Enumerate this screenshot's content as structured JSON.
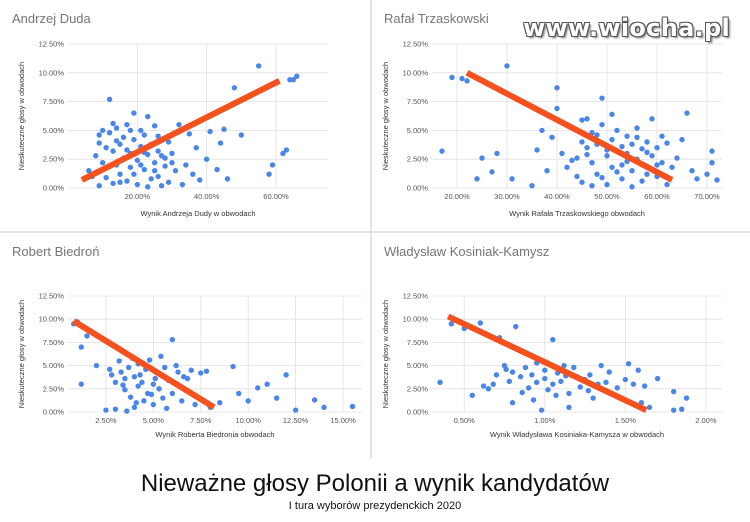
{
  "watermark": "www.wiocha.pl",
  "main_title": "Nieważne głosy Polonii a wynik kandydatów",
  "sub_title": "I tura wyborów prezydenckich 2020",
  "colors": {
    "point": "#4a86e8",
    "trend": "#f4511e",
    "grid": "#e0e0e0"
  },
  "chart_data": [
    {
      "type": "scatter",
      "title": "Andrzej Duda",
      "xlabel": "Wynik Andrzeja Dudy w obwodach",
      "ylabel": "Nieskuteczne głosy w obwodach",
      "xlim": [
        0,
        75
      ],
      "ylim": [
        0,
        12.5
      ],
      "xticks": [
        20,
        40,
        60
      ],
      "xtick_labels": [
        "20.00%",
        "40.00%",
        "60.00%"
      ],
      "yticks": [
        0,
        2.5,
        5,
        7.5,
        10,
        12.5
      ],
      "ytick_labels": [
        "0.00%",
        "2.50%",
        "5.00%",
        "7.50%",
        "10.00%",
        "12.50%"
      ],
      "grid": true,
      "trendline": [
        [
          4,
          0.7
        ],
        [
          61,
          9.3
        ]
      ],
      "points": [
        [
          5,
          0.8
        ],
        [
          6,
          1.5
        ],
        [
          8,
          2.8
        ],
        [
          9,
          0.2
        ],
        [
          9,
          4.6
        ],
        [
          10,
          2.2
        ],
        [
          10,
          5.0
        ],
        [
          11,
          0.9
        ],
        [
          12,
          4.8
        ],
        [
          12,
          7.7
        ],
        [
          13,
          3.2
        ],
        [
          13,
          0.4
        ],
        [
          14,
          2.0
        ],
        [
          14,
          5.2
        ],
        [
          15,
          3.8
        ],
        [
          15,
          1.2
        ],
        [
          16,
          4.4
        ],
        [
          16,
          2.6
        ],
        [
          17,
          0.6
        ],
        [
          17,
          5.5
        ],
        [
          18,
          3.0
        ],
        [
          18,
          1.8
        ],
        [
          19,
          4.2
        ],
        [
          19,
          6.5
        ],
        [
          20,
          2.4
        ],
        [
          20,
          0.3
        ],
        [
          21,
          3.6
        ],
        [
          21,
          5.0
        ],
        [
          22,
          1.6
        ],
        [
          22,
          4.6
        ],
        [
          23,
          2.9
        ],
        [
          23,
          6.2
        ],
        [
          24,
          0.8
        ],
        [
          24,
          3.8
        ],
        [
          25,
          2.2
        ],
        [
          25,
          5.4
        ],
        [
          26,
          1.0
        ],
        [
          26,
          3.2
        ],
        [
          27,
          4.2
        ],
        [
          27,
          0.2
        ],
        [
          28,
          1.9
        ],
        [
          28,
          2.6
        ],
        [
          29,
          0.5
        ],
        [
          29,
          4.0
        ],
        [
          30,
          3.0
        ],
        [
          31,
          1.5
        ],
        [
          32,
          5.5
        ],
        [
          33,
          0.3
        ],
        [
          34,
          2.0
        ],
        [
          35,
          4.7
        ],
        [
          36,
          1.2
        ],
        [
          37,
          3.5
        ],
        [
          38,
          0.7
        ],
        [
          40,
          2.5
        ],
        [
          41,
          4.9
        ],
        [
          43,
          1.6
        ],
        [
          44,
          3.9
        ],
        [
          45,
          5.1
        ],
        [
          46,
          0.8
        ],
        [
          48,
          8.7
        ],
        [
          50,
          4.6
        ],
        [
          55,
          10.6
        ],
        [
          58,
          1.2
        ],
        [
          59,
          2.0
        ],
        [
          62,
          3.0
        ],
        [
          63,
          3.3
        ],
        [
          64,
          9.4
        ],
        [
          65,
          9.4
        ],
        [
          66,
          9.7
        ],
        [
          7,
          1.0
        ],
        [
          11,
          3.5
        ],
        [
          15,
          0.5
        ],
        [
          19,
          1.2
        ],
        [
          23,
          0.1
        ],
        [
          27,
          2.8
        ],
        [
          13,
          5.6
        ],
        [
          17,
          3.3
        ],
        [
          21,
          2.0
        ],
        [
          25,
          1.5
        ],
        [
          9,
          3.9
        ],
        [
          14,
          4.1
        ],
        [
          18,
          5.0
        ],
        [
          22,
          3.1
        ],
        [
          26,
          4.5
        ],
        [
          30,
          2.2
        ]
      ]
    },
    {
      "type": "scatter",
      "title": "Rafał Trzaskowski",
      "xlabel": "Wynik Rafała Trzaskowskiego obwodach",
      "ylabel": "Nieskuteczne głosy w obwodach",
      "xlim": [
        15,
        73
      ],
      "ylim": [
        0,
        12.5
      ],
      "xticks": [
        20,
        30,
        40,
        50,
        60,
        70
      ],
      "xtick_labels": [
        "20.00%",
        "30.00%",
        "40.00%",
        "50.00%",
        "60.00%",
        "70.00%"
      ],
      "yticks": [
        0,
        2.5,
        5,
        7.5,
        10,
        12.5
      ],
      "ytick_labels": [
        "0.00%",
        "2.50%",
        "5.00%",
        "7.50%",
        "10.00%",
        "12.50%"
      ],
      "grid": true,
      "trendline": [
        [
          22,
          10.0
        ],
        [
          63,
          0.7
        ]
      ],
      "points": [
        [
          17,
          3.2
        ],
        [
          19,
          9.6
        ],
        [
          21,
          9.5
        ],
        [
          22,
          9.3
        ],
        [
          24,
          0.8
        ],
        [
          25,
          2.6
        ],
        [
          27,
          1.4
        ],
        [
          28,
          3.0
        ],
        [
          30,
          10.6
        ],
        [
          31,
          0.8
        ],
        [
          35,
          0.2
        ],
        [
          36,
          3.3
        ],
        [
          37,
          5.0
        ],
        [
          38,
          1.5
        ],
        [
          39,
          4.4
        ],
        [
          40,
          6.9
        ],
        [
          40,
          8.7
        ],
        [
          41,
          3.0
        ],
        [
          42,
          1.8
        ],
        [
          43,
          5.2
        ],
        [
          44,
          2.6
        ],
        [
          45,
          4.0
        ],
        [
          45,
          0.5
        ],
        [
          46,
          3.5
        ],
        [
          46,
          6.0
        ],
        [
          47,
          2.2
        ],
        [
          47,
          4.8
        ],
        [
          48,
          1.2
        ],
        [
          48,
          3.8
        ],
        [
          49,
          5.5
        ],
        [
          49,
          7.8
        ],
        [
          50,
          2.8
        ],
        [
          50,
          0.3
        ],
        [
          51,
          4.2
        ],
        [
          51,
          1.8
        ],
        [
          52,
          3.2
        ],
        [
          52,
          5.0
        ],
        [
          53,
          2.0
        ],
        [
          53,
          0.8
        ],
        [
          54,
          4.5
        ],
        [
          54,
          3.0
        ],
        [
          55,
          1.5
        ],
        [
          55,
          3.8
        ],
        [
          56,
          2.5
        ],
        [
          56,
          5.2
        ],
        [
          57,
          0.6
        ],
        [
          57,
          3.4
        ],
        [
          58,
          4.0
        ],
        [
          58,
          1.2
        ],
        [
          59,
          2.8
        ],
        [
          59,
          6.0
        ],
        [
          60,
          3.5
        ],
        [
          60,
          1.0
        ],
        [
          61,
          4.5
        ],
        [
          61,
          2.2
        ],
        [
          62,
          0.3
        ],
        [
          62,
          3.9
        ],
        [
          63,
          1.8
        ],
        [
          64,
          2.6
        ],
        [
          65,
          4.2
        ],
        [
          66,
          6.5
        ],
        [
          67,
          1.5
        ],
        [
          68,
          0.8
        ],
        [
          70,
          1.2
        ],
        [
          71,
          3.2
        ],
        [
          72,
          0.7
        ],
        [
          71,
          2.2
        ],
        [
          44,
          1.0
        ],
        [
          46,
          2.9
        ],
        [
          48,
          4.6
        ],
        [
          50,
          3.3
        ],
        [
          52,
          1.4
        ],
        [
          54,
          2.3
        ],
        [
          56,
          4.4
        ],
        [
          58,
          3.1
        ],
        [
          60,
          2.0
        ],
        [
          45,
          5.9
        ],
        [
          49,
          0.9
        ],
        [
          53,
          3.6
        ],
        [
          47,
          0.2
        ],
        [
          51,
          6.4
        ],
        [
          55,
          0.1
        ],
        [
          43,
          2.4
        ]
      ]
    },
    {
      "type": "scatter",
      "title": "Robert Biedroń",
      "xlabel": "Wynik Roberta Biedronia obwodach",
      "ylabel": "Nieskuteczne głosy w obwodach",
      "xlim": [
        0.5,
        16
      ],
      "ylim": [
        0,
        12.5
      ],
      "xticks": [
        2.5,
        5,
        7.5,
        10,
        12.5,
        15
      ],
      "xtick_labels": [
        "2.50%",
        "5.00%",
        "7.50%",
        "10.00%",
        "12.50%",
        "15.00%"
      ],
      "yticks": [
        0,
        2.5,
        5,
        7.5,
        10,
        12.5
      ],
      "ytick_labels": [
        "0.00%",
        "2.50%",
        "5.00%",
        "7.50%",
        "10.00%",
        "12.50%"
      ],
      "grid": true,
      "trendline": [
        [
          0.8,
          9.8
        ],
        [
          8.2,
          0.5
        ]
      ],
      "points": [
        [
          0.8,
          9.5
        ],
        [
          1.0,
          9.7
        ],
        [
          1.2,
          7.0
        ],
        [
          1.2,
          3.0
        ],
        [
          1.5,
          8.2
        ],
        [
          2.0,
          5.0
        ],
        [
          2.5,
          0.2
        ],
        [
          2.8,
          4.0
        ],
        [
          3.0,
          3.2
        ],
        [
          3.0,
          0.3
        ],
        [
          3.2,
          5.5
        ],
        [
          3.3,
          4.3
        ],
        [
          3.5,
          3.6
        ],
        [
          3.5,
          2.4
        ],
        [
          3.7,
          4.8
        ],
        [
          3.8,
          1.6
        ],
        [
          4.0,
          3.8
        ],
        [
          4.0,
          0.5
        ],
        [
          4.2,
          5.2
        ],
        [
          4.2,
          2.8
        ],
        [
          4.4,
          3.2
        ],
        [
          4.5,
          1.2
        ],
        [
          4.6,
          4.6
        ],
        [
          4.7,
          2.0
        ],
        [
          4.8,
          5.6
        ],
        [
          5.0,
          3.0
        ],
        [
          5.0,
          0.8
        ],
        [
          5.2,
          4.2
        ],
        [
          5.3,
          2.5
        ],
        [
          5.5,
          1.5
        ],
        [
          5.6,
          4.8
        ],
        [
          5.8,
          3.4
        ],
        [
          6.0,
          7.8
        ],
        [
          6.0,
          2.0
        ],
        [
          6.2,
          5.0
        ],
        [
          6.4,
          2.8
        ],
        [
          6.5,
          1.2
        ],
        [
          6.8,
          3.6
        ],
        [
          7.0,
          4.5
        ],
        [
          7.2,
          0.8
        ],
        [
          7.5,
          4.2
        ],
        [
          7.8,
          4.4
        ],
        [
          8.0,
          0.5
        ],
        [
          8.5,
          1.0
        ],
        [
          9.2,
          4.9
        ],
        [
          9.5,
          2.0
        ],
        [
          10.0,
          1.2
        ],
        [
          10.5,
          2.6
        ],
        [
          11.0,
          3.0
        ],
        [
          11.5,
          1.5
        ],
        [
          12.0,
          4.0
        ],
        [
          12.5,
          0.2
        ],
        [
          13.5,
          1.3
        ],
        [
          14.0,
          0.5
        ],
        [
          15.5,
          0.6
        ],
        [
          3.6,
          0.1
        ],
        [
          4.9,
          1.9
        ],
        [
          5.4,
          6.0
        ],
        [
          6.6,
          3.8
        ],
        [
          3.9,
          5.8
        ],
        [
          4.3,
          4.0
        ],
        [
          5.1,
          3.6
        ],
        [
          5.7,
          0.4
        ],
        [
          6.3,
          4.3
        ],
        [
          2.7,
          4.6
        ],
        [
          3.4,
          2.9
        ],
        [
          4.1,
          1.0
        ]
      ]
    },
    {
      "type": "scatter",
      "title": "Władysław Kosiniak-Kamysz",
      "xlabel": "Wynik Władysława Kosiniaka-Kamysza w obwodach",
      "ylabel": "Nieskuteczne głosy w obwodach",
      "xlim": [
        0.3,
        2.1
      ],
      "ylim": [
        0,
        12.5
      ],
      "xticks": [
        0.5,
        1,
        1.5,
        2
      ],
      "xtick_labels": [
        "0.50%",
        "1.00%",
        "1.50%",
        "2.00%"
      ],
      "yticks": [
        0,
        2.5,
        5,
        7.5,
        10,
        12.5
      ],
      "ytick_labels": [
        "0.00%",
        "2.50%",
        "5.00%",
        "7.50%",
        "10.00%",
        "12.50%"
      ],
      "grid": true,
      "trendline": [
        [
          0.4,
          10.3
        ],
        [
          1.63,
          0.2
        ]
      ],
      "points": [
        [
          0.35,
          3.2
        ],
        [
          0.42,
          9.5
        ],
        [
          0.5,
          9.0
        ],
        [
          0.6,
          9.6
        ],
        [
          0.62,
          2.8
        ],
        [
          0.68,
          3.0
        ],
        [
          0.7,
          4.0
        ],
        [
          0.72,
          8.0
        ],
        [
          0.75,
          5.0
        ],
        [
          0.78,
          3.3
        ],
        [
          0.8,
          4.3
        ],
        [
          0.8,
          1.0
        ],
        [
          0.82,
          9.2
        ],
        [
          0.85,
          3.8
        ],
        [
          0.88,
          4.8
        ],
        [
          0.9,
          2.6
        ],
        [
          0.92,
          4.0
        ],
        [
          0.95,
          3.2
        ],
        [
          0.95,
          5.3
        ],
        [
          0.98,
          0.2
        ],
        [
          1.0,
          3.6
        ],
        [
          1.0,
          4.5
        ],
        [
          1.02,
          2.4
        ],
        [
          1.05,
          3.0
        ],
        [
          1.05,
          7.8
        ],
        [
          1.08,
          4.2
        ],
        [
          1.1,
          3.3
        ],
        [
          1.12,
          5.0
        ],
        [
          1.15,
          2.0
        ],
        [
          1.15,
          0.5
        ],
        [
          1.18,
          4.8
        ],
        [
          1.2,
          3.8
        ],
        [
          1.22,
          2.7
        ],
        [
          1.25,
          3.5
        ],
        [
          1.28,
          4.0
        ],
        [
          1.3,
          1.5
        ],
        [
          1.35,
          5.0
        ],
        [
          1.38,
          3.2
        ],
        [
          1.4,
          4.3
        ],
        [
          1.45,
          2.6
        ],
        [
          1.5,
          3.5
        ],
        [
          1.52,
          5.2
        ],
        [
          1.55,
          3.0
        ],
        [
          1.58,
          4.5
        ],
        [
          1.6,
          1.0
        ],
        [
          1.62,
          2.8
        ],
        [
          1.65,
          0.5
        ],
        [
          1.7,
          3.6
        ],
        [
          1.8,
          2.2
        ],
        [
          1.8,
          0.2
        ],
        [
          1.85,
          0.3
        ],
        [
          1.88,
          1.5
        ],
        [
          0.55,
          1.8
        ],
        [
          0.65,
          2.5
        ],
        [
          0.86,
          2.1
        ],
        [
          0.93,
          1.3
        ],
        [
          1.07,
          1.8
        ],
        [
          1.13,
          3.9
        ],
        [
          1.27,
          2.3
        ],
        [
          1.33,
          3.0
        ],
        [
          0.76,
          4.6
        ]
      ]
    }
  ]
}
